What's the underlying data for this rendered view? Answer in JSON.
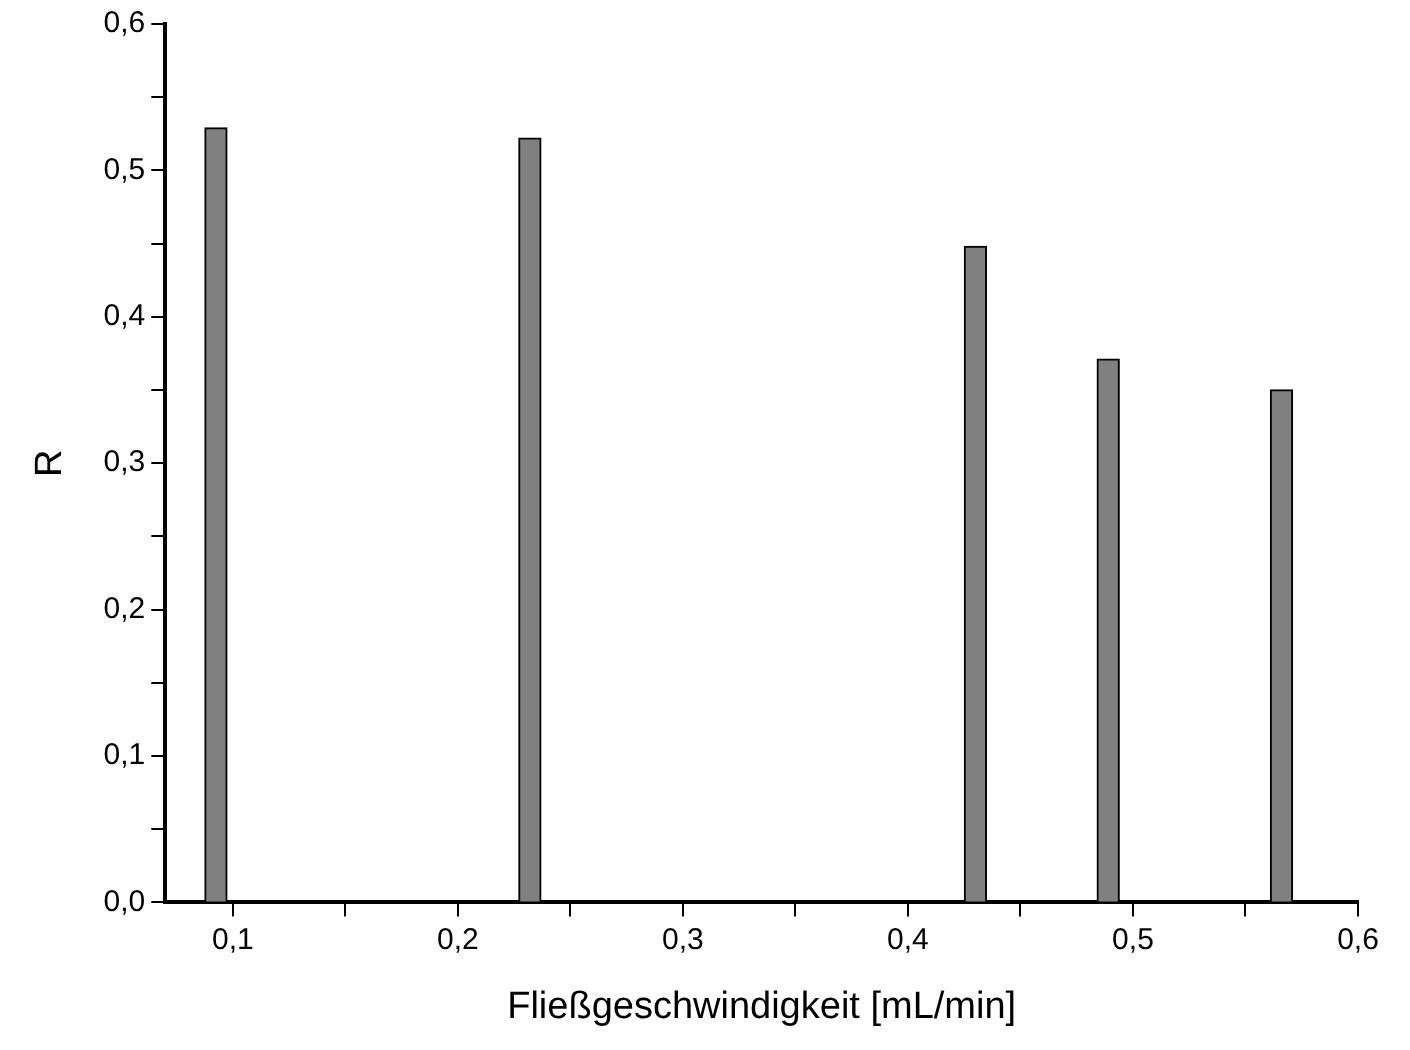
{
  "chart_data": {
    "type": "bar",
    "xlabel": "Fließgeschwindigkeit [mL/min]",
    "ylabel": "R",
    "x": [
      0.0925,
      0.232,
      0.43,
      0.489,
      0.566
    ],
    "values": [
      0.529,
      0.522,
      0.448,
      0.371,
      0.35
    ],
    "color": "#808080",
    "xlim": [
      0.07,
      0.6
    ],
    "xticks": [
      {
        "value": 0.1,
        "label": "0,1"
      },
      {
        "value": 0.15,
        "label": null
      },
      {
        "value": 0.2,
        "label": "0,2"
      },
      {
        "value": 0.25,
        "label": null
      },
      {
        "value": 0.3,
        "label": "0,3"
      },
      {
        "value": 0.35,
        "label": null
      },
      {
        "value": 0.4,
        "label": "0,4"
      },
      {
        "value": 0.45,
        "label": null
      },
      {
        "value": 0.5,
        "label": "0,5"
      },
      {
        "value": 0.55,
        "label": null
      },
      {
        "value": 0.6,
        "label": "0,6"
      }
    ],
    "ylim": [
      0,
      0.6
    ],
    "yticks": [
      {
        "value": 0,
        "label": "0,0"
      },
      {
        "value": 0.05,
        "label": null
      },
      {
        "value": 0.1,
        "label": "0,1"
      },
      {
        "value": 0.15,
        "label": null
      },
      {
        "value": 0.2,
        "label": "0,2"
      },
      {
        "value": 0.25,
        "label": null
      },
      {
        "value": 0.3,
        "label": "0,3"
      },
      {
        "value": 0.35,
        "label": null
      },
      {
        "value": 0.4,
        "label": "0,4"
      },
      {
        "value": 0.45,
        "label": null
      },
      {
        "value": 0.5,
        "label": "0,5"
      },
      {
        "value": 0.55,
        "label": null
      },
      {
        "value": 0.6,
        "label": "0,6"
      }
    ],
    "grid": false,
    "legend": false
  }
}
